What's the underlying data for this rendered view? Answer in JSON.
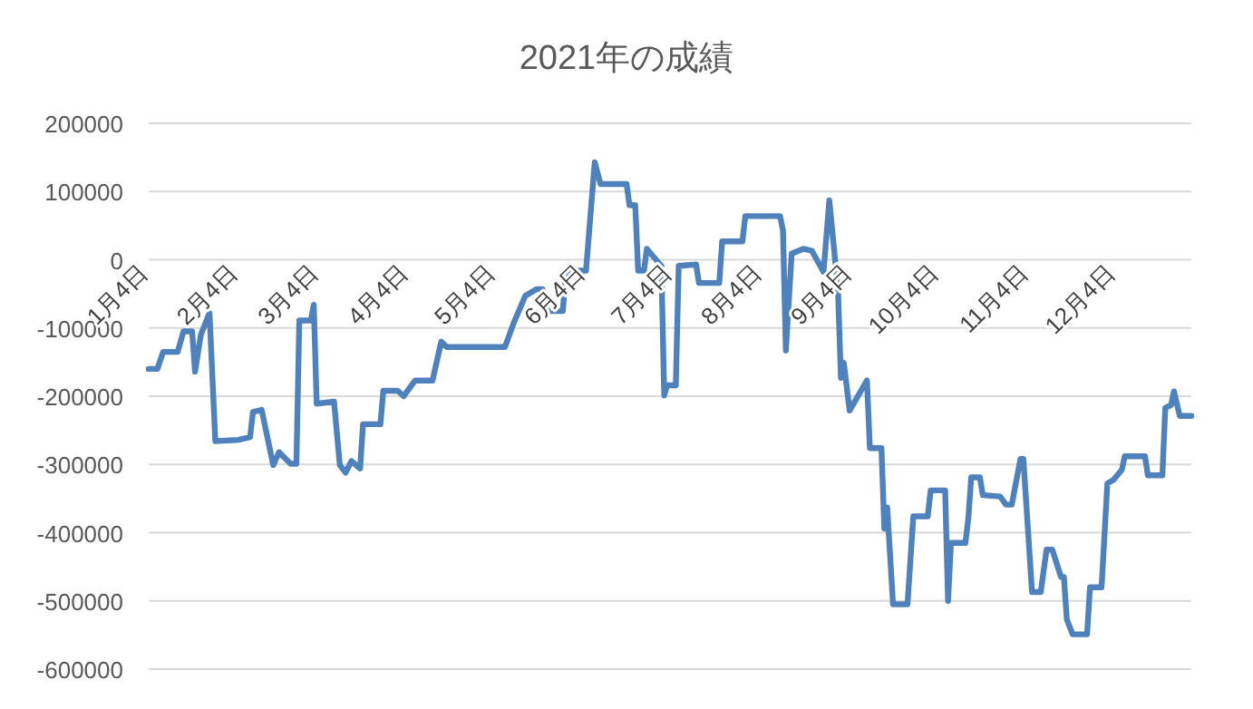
{
  "chart_data": {
    "type": "line",
    "title": "2021年の成績",
    "x": [
      "2021-01-04",
      "2021-01-07",
      "2021-01-09",
      "2021-01-14",
      "2021-01-16",
      "2021-01-19",
      "2021-01-20",
      "2021-01-22",
      "2021-01-25",
      "2021-01-27",
      "2021-02-04",
      "2021-02-08",
      "2021-02-09",
      "2021-02-12",
      "2021-02-16",
      "2021-02-18",
      "2021-02-22",
      "2021-02-24",
      "2021-02-25",
      "2021-03-01",
      "2021-03-02",
      "2021-03-03",
      "2021-03-09",
      "2021-03-11",
      "2021-03-13",
      "2021-03-15",
      "2021-03-18",
      "2021-03-19",
      "2021-03-25",
      "2021-03-26",
      "2021-03-31",
      "2021-04-02",
      "2021-04-06",
      "2021-04-12",
      "2021-04-15",
      "2021-04-17",
      "2021-05-07",
      "2021-05-10",
      "2021-05-14",
      "2021-05-18",
      "2021-05-20",
      "2021-05-21",
      "2021-05-27",
      "2021-05-28",
      "2021-06-04",
      "2021-06-07",
      "2021-06-09",
      "2021-06-18",
      "2021-06-19",
      "2021-06-21",
      "2021-06-22",
      "2021-06-24",
      "2021-06-25",
      "2021-06-29",
      "2021-06-30",
      "2021-07-01",
      "2021-07-02",
      "2021-07-05",
      "2021-07-06",
      "2021-07-12",
      "2021-07-13",
      "2021-07-20",
      "2021-07-21",
      "2021-07-28",
      "2021-07-29",
      "2021-08-10",
      "2021-08-11",
      "2021-08-12",
      "2021-08-14",
      "2021-08-18",
      "2021-08-21",
      "2021-08-25",
      "2021-08-27",
      "2021-08-30",
      "2021-08-31",
      "2021-09-01",
      "2021-09-03",
      "2021-09-09",
      "2021-09-10",
      "2021-09-14",
      "2021-09-15",
      "2021-09-16",
      "2021-09-18",
      "2021-09-23",
      "2021-09-25",
      "2021-09-30",
      "2021-10-01",
      "2021-10-06",
      "2021-10-07",
      "2021-10-08",
      "2021-10-13",
      "2021-10-14",
      "2021-10-15",
      "2021-10-18",
      "2021-10-19",
      "2021-10-25",
      "2021-10-27",
      "2021-10-29",
      "2021-11-01",
      "2021-11-02",
      "2021-11-05",
      "2021-11-08",
      "2021-11-10",
      "2021-11-12",
      "2021-11-15",
      "2021-11-16",
      "2021-11-17",
      "2021-11-19",
      "2021-11-24",
      "2021-11-25",
      "2021-11-29",
      "2021-12-01",
      "2021-12-03",
      "2021-12-06",
      "2021-12-07",
      "2021-12-14",
      "2021-12-15",
      "2021-12-20",
      "2021-12-21",
      "2021-12-23",
      "2021-12-24",
      "2021-12-26",
      "2021-12-30"
    ],
    "series": [
      {
        "color": "#4f81bd",
        "values": [
          -160000,
          -160000,
          -135000,
          -135000,
          -105000,
          -105000,
          -164000,
          -110000,
          -78000,
          -266000,
          -264000,
          -260000,
          -223000,
          -220000,
          -301000,
          -282000,
          -299000,
          -299000,
          -89000,
          -89000,
          -66000,
          -211000,
          -208000,
          -301000,
          -312000,
          -295000,
          -306000,
          -241000,
          -241000,
          -192000,
          -192000,
          -200000,
          -177000,
          -177000,
          -120000,
          -128000,
          -128000,
          -93000,
          -53000,
          -43000,
          -43000,
          -75000,
          -75000,
          -16000,
          -16000,
          143000,
          111000,
          111000,
          80000,
          80000,
          -16000,
          -16000,
          16000,
          -4000,
          -9000,
          -199000,
          -184000,
          -184000,
          -9000,
          -7000,
          -34000,
          -34000,
          27000,
          27000,
          64000,
          64000,
          43000,
          -133000,
          9000,
          16000,
          13000,
          -18000,
          87000,
          -44000,
          -173000,
          -151000,
          -221000,
          -177000,
          -276000,
          -276000,
          -394000,
          -363000,
          -505000,
          -505000,
          -376000,
          -376000,
          -338000,
          -338000,
          -500000,
          -415000,
          -415000,
          -379000,
          -319000,
          -319000,
          -345000,
          -347000,
          -359000,
          -359000,
          -292000,
          -292000,
          -487000,
          -487000,
          -425000,
          -425000,
          -465000,
          -465000,
          -527000,
          -549000,
          -549000,
          -480000,
          -480000,
          -328000,
          -323000,
          -308000,
          -288000,
          -288000,
          -316000,
          -316000,
          -217000,
          -213000,
          -193000,
          -229000,
          -229000
        ]
      }
    ],
    "xlim": [
      "2021-01-04",
      "2021-12-30"
    ],
    "xticks": [
      {
        "value": "2021-01-04",
        "label": "1月4日"
      },
      {
        "value": "2021-02-04",
        "label": "2月4日"
      },
      {
        "value": "2021-03-04",
        "label": "3月4日"
      },
      {
        "value": "2021-04-04",
        "label": "4月4日"
      },
      {
        "value": "2021-05-04",
        "label": "5月4日"
      },
      {
        "value": "2021-06-04",
        "label": "6月4日"
      },
      {
        "value": "2021-07-04",
        "label": "7月4日"
      },
      {
        "value": "2021-08-04",
        "label": "8月4日"
      },
      {
        "value": "2021-09-04",
        "label": "9月4日"
      },
      {
        "value": "2021-10-04",
        "label": "10月4日"
      },
      {
        "value": "2021-11-04",
        "label": "11月4日"
      },
      {
        "value": "2021-12-04",
        "label": "12月4日"
      }
    ],
    "ylim": [
      -600000,
      200000
    ],
    "yticks": [
      200000,
      100000,
      0,
      -100000,
      -200000,
      -300000,
      -400000,
      -500000,
      -600000
    ],
    "grid": "y",
    "line_style": "solid",
    "marker": "none"
  }
}
